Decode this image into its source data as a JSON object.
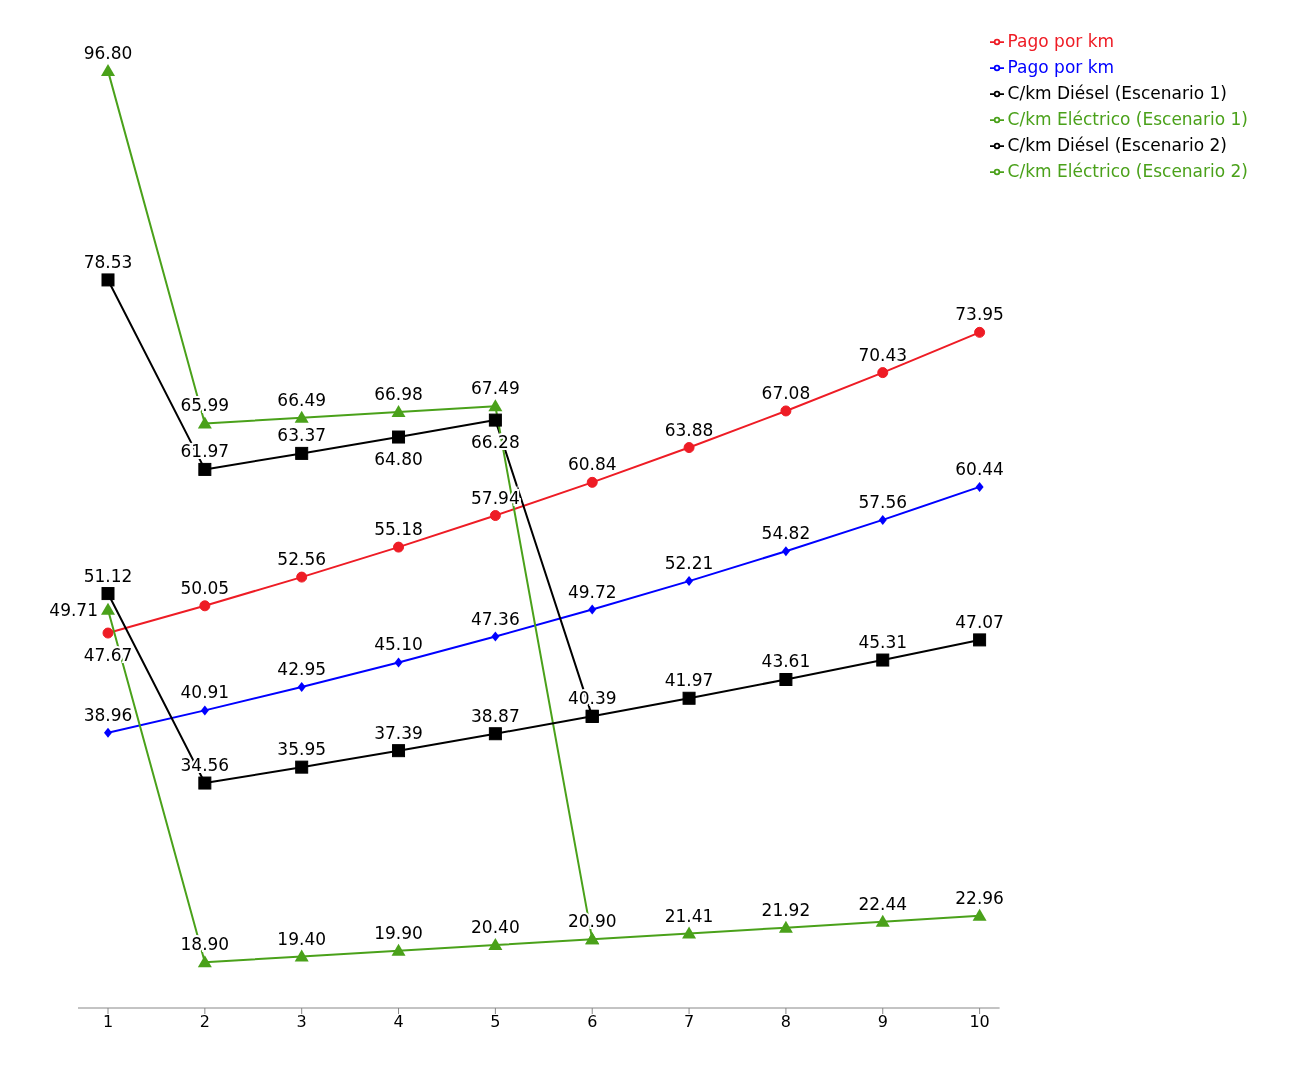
{
  "chart_data": {
    "type": "line",
    "categories": [
      "1",
      "2",
      "3",
      "4",
      "5",
      "6",
      "7",
      "8",
      "9",
      "10"
    ],
    "legend": "top right",
    "grid": false,
    "data_labels": true,
    "line_style": "solid",
    "series": [
      {
        "name": "Pago por km",
        "color": "#ee1c25",
        "marker": "circle",
        "values": [
          47.67,
          50.05,
          52.56,
          55.18,
          57.94,
          60.84,
          63.88,
          67.08,
          70.43,
          73.95
        ],
        "value_labels": [
          "47.67",
          "50.05",
          "52.56",
          "55.18",
          "57.94",
          "60.84",
          "63.88",
          "67.08",
          "70.43",
          "73.95"
        ]
      },
      {
        "name": "Pago por km",
        "color": "#0000ff",
        "marker": "diamond",
        "values": [
          38.96,
          40.91,
          42.95,
          45.1,
          47.36,
          49.72,
          52.21,
          54.82,
          57.56,
          60.44
        ],
        "value_labels": [
          "38.96",
          "40.91",
          "42.95",
          "45.10",
          "47.36",
          "49.72",
          "52.21",
          "54.82",
          "57.56",
          "60.44"
        ]
      },
      {
        "name": "C/km Diésel (Escenario 1)",
        "color": "#000000",
        "marker": "square",
        "values": [
          78.53,
          61.97,
          63.37,
          64.8,
          66.28,
          40.39,
          41.97,
          43.61,
          45.31,
          47.07
        ],
        "value_labels": [
          "78.53",
          "61.97",
          "63.37",
          "64.80",
          "66.28",
          null,
          "41.97",
          "43.61",
          "45.31",
          "47.07"
        ]
      },
      {
        "name": "C/km Eléctrico (Escenario 1)",
        "color": "#4aa11a",
        "marker": "triangle",
        "values": [
          96.8,
          65.99,
          66.49,
          66.98,
          67.49,
          20.9,
          21.41,
          21.92,
          22.44,
          22.96
        ],
        "value_labels": [
          "96.80",
          "65.99",
          "66.49",
          "66.98",
          "67.49",
          null,
          "21.41",
          "21.92",
          "22.44",
          "22.96"
        ]
      },
      {
        "name": "C/km Diésel (Escenario 2)",
        "color": "#000000",
        "marker": "square",
        "values": [
          51.12,
          34.56,
          35.95,
          37.39,
          38.87,
          40.39,
          null,
          null,
          null,
          null
        ],
        "value_labels": [
          "51.12",
          "34.56",
          "35.95",
          "37.39",
          "38.87",
          "40.39",
          null,
          null,
          null,
          null
        ]
      },
      {
        "name": "C/km Eléctrico (Escenario 2)",
        "color": "#4aa11a",
        "marker": "triangle",
        "values": [
          49.71,
          18.9,
          19.4,
          19.9,
          20.4,
          20.9,
          null,
          null,
          null,
          null
        ],
        "value_labels": [
          "49.71",
          "18.90",
          "19.40",
          "19.90",
          "20.40",
          "20.90",
          null,
          null,
          null,
          null
        ]
      }
    ]
  }
}
